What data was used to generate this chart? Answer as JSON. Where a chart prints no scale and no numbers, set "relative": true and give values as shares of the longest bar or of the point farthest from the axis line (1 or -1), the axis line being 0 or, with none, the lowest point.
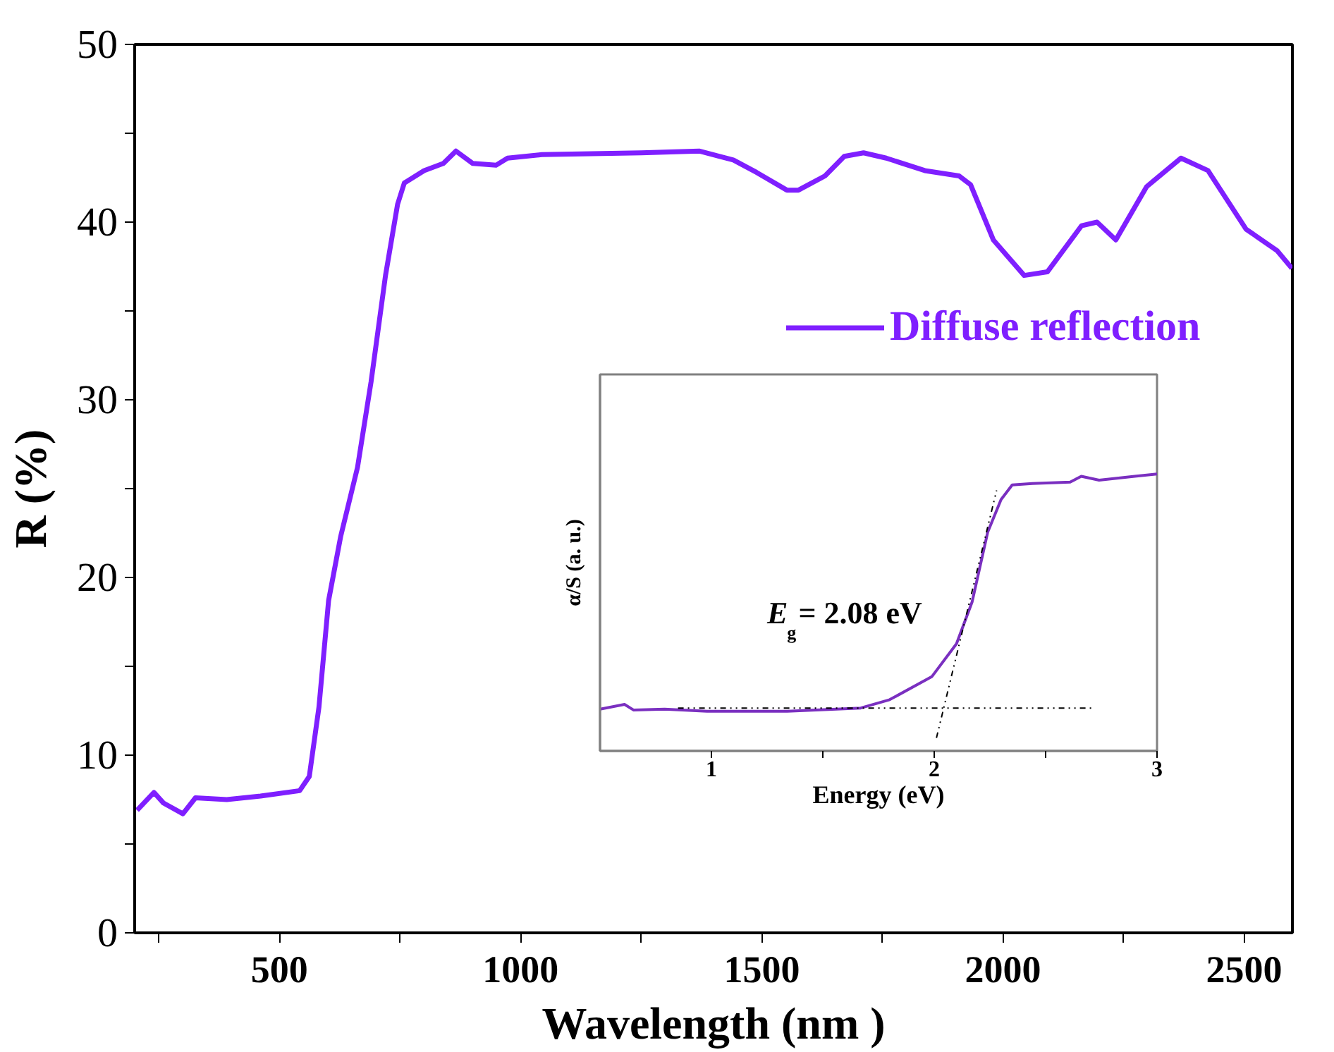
{
  "chart_data": [
    {
      "type": "line",
      "xlabel": "Wavelength (nm )",
      "ylabel": "R (%)",
      "xlim": [
        200,
        2600
      ],
      "ylim": [
        0,
        50
      ],
      "xticks": [
        {
          "value": 250,
          "label": null
        },
        500,
        {
          "value": 750,
          "label": null
        },
        1000,
        {
          "value": 1250,
          "label": null
        },
        1500,
        {
          "value": 1750,
          "label": null
        },
        2000,
        {
          "value": 2250,
          "label": null
        },
        2500
      ],
      "yticks": [
        0,
        {
          "value": 5,
          "label": null
        },
        10,
        {
          "value": 15,
          "label": null
        },
        20,
        {
          "value": 25,
          "label": null
        },
        30,
        {
          "value": 35,
          "label": null
        },
        40,
        {
          "value": 45,
          "label": null
        },
        50
      ],
      "grid": false,
      "legend": "right",
      "series": [
        {
          "name": "Diffuse reflection",
          "color": "#7f1fff",
          "x": [
            205,
            240,
            260,
            300,
            326,
            391,
            461,
            542,
            562,
            582,
            602,
            627,
            662,
            690,
            720,
            745,
            759,
            800,
            840,
            866,
            901,
            949,
            973,
            1044,
            1250,
            1370,
            1441,
            1489,
            1552,
            1576,
            1631,
            1671,
            1711,
            1758,
            1838,
            1909,
            1933,
            1980,
            2044,
            2092,
            2163,
            2195,
            2234,
            2298,
            2369,
            2425,
            2504,
            2568,
            2599
          ],
          "values": [
            6.9,
            7.9,
            7.3,
            6.7,
            7.6,
            7.5,
            7.7,
            8.0,
            8.8,
            12.7,
            18.7,
            22.3,
            26.2,
            31,
            37,
            41,
            42.2,
            42.9,
            43.3,
            44.0,
            43.3,
            43.2,
            43.6,
            43.8,
            43.9,
            44.0,
            43.5,
            42.8,
            41.8,
            41.8,
            42.6,
            43.7,
            43.9,
            43.6,
            42.9,
            42.6,
            42.1,
            39.0,
            37.0,
            37.2,
            39.8,
            40.0,
            39.0,
            42.0,
            43.6,
            42.9,
            39.6,
            38.4,
            37.4
          ]
        }
      ]
    },
    {
      "type": "line",
      "xlabel": "Energy (eV)",
      "ylabel": "α/S (a. u.)",
      "relative": true,
      "xlim": [
        0.5,
        3
      ],
      "xticks": [
        1,
        {
          "value": 1.5,
          "label": null
        },
        2,
        {
          "value": 2.5,
          "label": null
        },
        3
      ],
      "tick_labels": "x",
      "grid": false,
      "annotations": [
        "E$_{g}$ = 2.08 eV"
      ],
      "series": [
        {
          "color": "#7a2fc0",
          "x": [
            0.5,
            0.61,
            0.65,
            0.79,
            0.98,
            1.34,
            1.67,
            1.8,
            1.99,
            2.1,
            2.17,
            2.24,
            2.3,
            2.35,
            2.44,
            2.61,
            2.66,
            2.74,
            2.9,
            3.0
          ],
          "values": [
            0.151,
            0.168,
            0.148,
            0.151,
            0.143,
            0.143,
            0.155,
            0.185,
            0.269,
            0.387,
            0.538,
            0.79,
            0.908,
            0.961,
            0.966,
            0.971,
            0.992,
            0.978,
            0.992,
            1.0
          ]
        },
        {
          "type": "line",
          "color": "#000000",
          "line_style": "dashed",
          "x": [
            0.85,
            2.72
          ],
          "values": [
            0.155,
            0.155
          ]
        },
        {
          "type": "line",
          "color": "#000000",
          "line_style": "dashed",
          "x": [
            2.01,
            2.28
          ],
          "values": [
            0.047,
            0.941
          ]
        }
      ]
    }
  ]
}
